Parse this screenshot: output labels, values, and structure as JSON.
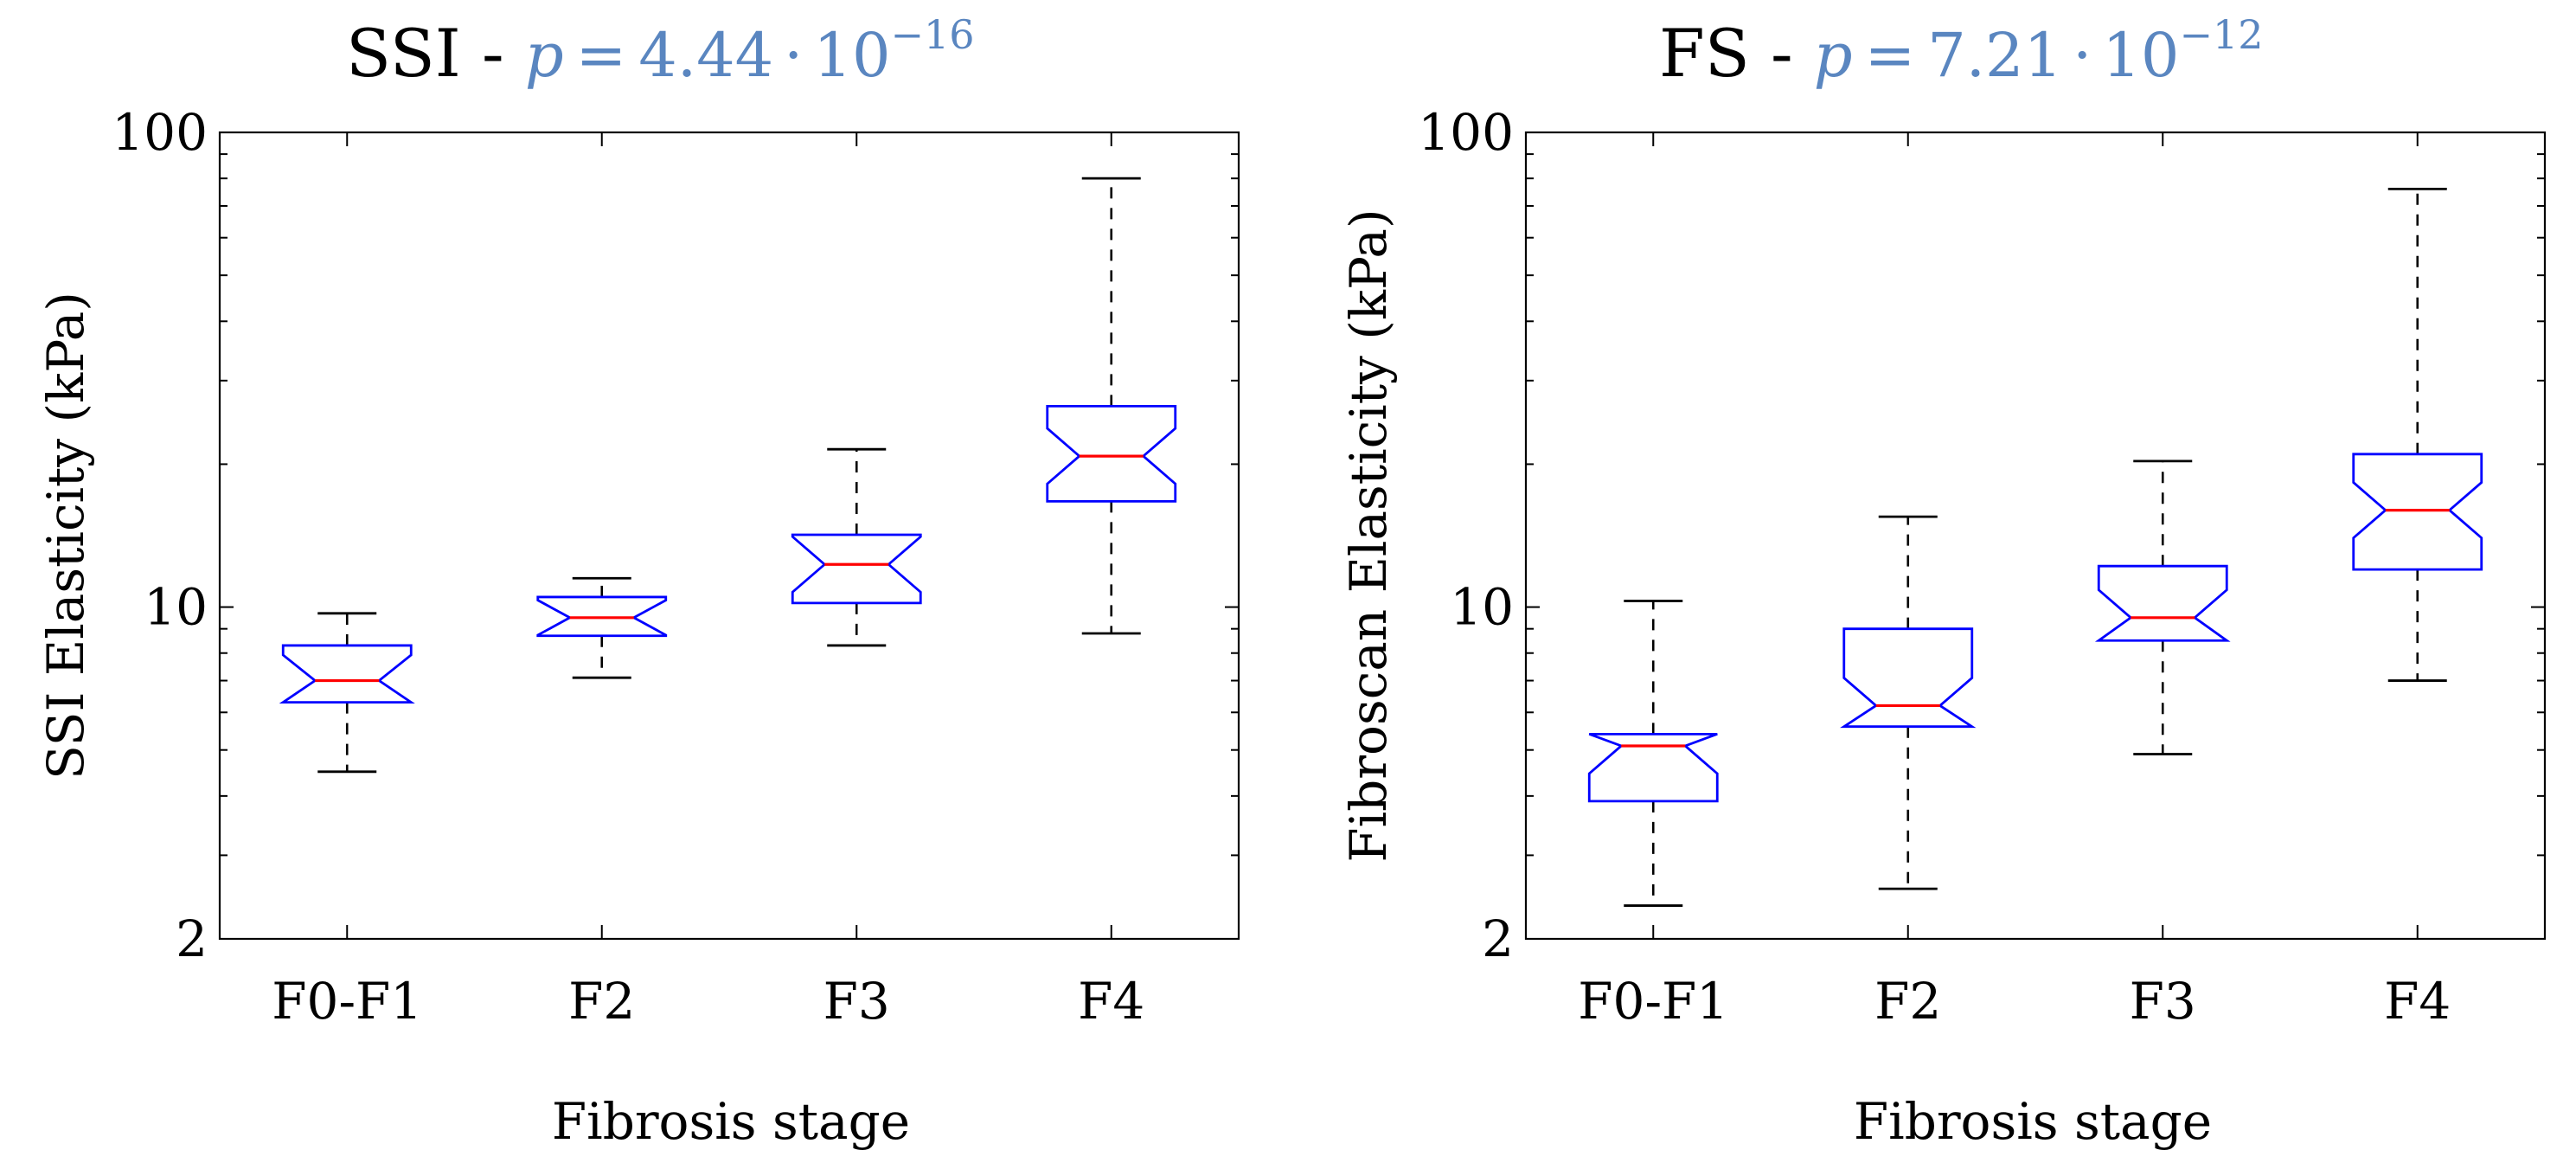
{
  "chart_data": [
    {
      "type": "boxplot",
      "title": "SSI - ",
      "p_value": {
        "symbol": "p",
        "equals": "=",
        "mantissa": "4.44",
        "times": "·",
        "base": "10",
        "exponent": "−16",
        "color": "#5a86c0"
      },
      "xlabel": "Fibrosis stage",
      "ylabel": "SSI Elasticity (kPa)",
      "yscale": "log",
      "ylim": [
        2,
        100
      ],
      "yticks": [
        2,
        10,
        100
      ],
      "ytick_labels": [
        "2",
        "10",
        "100"
      ],
      "notched": true,
      "grid": false,
      "categories": [
        "F0-F1",
        "F2",
        "F3",
        "F4"
      ],
      "boxes": [
        {
          "category": "F0-F1",
          "whisker_low": 4.5,
          "q1": 6.3,
          "median": 7.0,
          "q3": 8.3,
          "whisker_high": 9.7
        },
        {
          "category": "F2",
          "whisker_low": 7.1,
          "q1": 8.7,
          "median": 9.5,
          "q3": 10.5,
          "whisker_high": 11.5
        },
        {
          "category": "F3",
          "whisker_low": 8.3,
          "q1": 10.2,
          "median": 12.3,
          "q3": 14.2,
          "whisker_high": 21.5
        },
        {
          "category": "F4",
          "whisker_low": 8.8,
          "q1": 16.7,
          "median": 20.8,
          "q3": 26.5,
          "whisker_high": 80
        }
      ]
    },
    {
      "type": "boxplot",
      "title": "FS - ",
      "p_value": {
        "symbol": "p",
        "equals": "=",
        "mantissa": "7.21",
        "times": "·",
        "base": "10",
        "exponent": "−12",
        "color": "#5a86c0"
      },
      "xlabel": "Fibrosis stage",
      "ylabel": "Fibroscan Elasticity (kPa)",
      "yscale": "log",
      "ylim": [
        2,
        100
      ],
      "yticks": [
        2,
        10,
        100
      ],
      "ytick_labels": [
        "2",
        "10",
        "100"
      ],
      "notched": true,
      "grid": false,
      "categories": [
        "F0-F1",
        "F2",
        "F3",
        "F4"
      ],
      "boxes": [
        {
          "category": "F0-F1",
          "whisker_low": 2.35,
          "q1": 3.9,
          "median": 5.1,
          "q3": 5.4,
          "whisker_high": 10.3
        },
        {
          "category": "F2",
          "whisker_low": 2.55,
          "q1": 5.6,
          "median": 6.2,
          "q3": 9.0,
          "whisker_high": 15.5
        },
        {
          "category": "F3",
          "whisker_low": 4.9,
          "q1": 8.5,
          "median": 9.5,
          "q3": 12.2,
          "whisker_high": 20.3
        },
        {
          "category": "F4",
          "whisker_low": 7.0,
          "q1": 12.0,
          "median": 16.0,
          "q3": 21.0,
          "whisker_high": 76
        }
      ]
    }
  ]
}
